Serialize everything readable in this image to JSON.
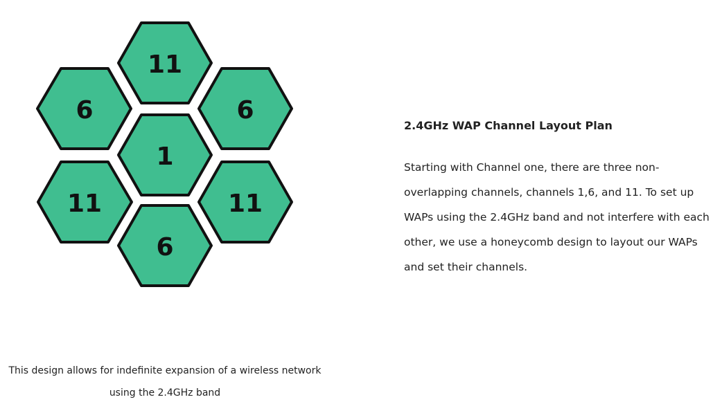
{
  "diagram": {
    "fill_color": "#40be90",
    "stroke_color": "#111111",
    "cells": [
      {
        "position": "top",
        "channel": "11"
      },
      {
        "position": "upper-left",
        "channel": "6"
      },
      {
        "position": "upper-right",
        "channel": "6"
      },
      {
        "position": "center",
        "channel": "1"
      },
      {
        "position": "lower-left",
        "channel": "11"
      },
      {
        "position": "lower-right",
        "channel": "11"
      },
      {
        "position": "bottom",
        "channel": "6"
      }
    ]
  },
  "caption": {
    "line1": "This design allows for indefinite expansion of a wireless network",
    "line2": "using the 2.4GHz band"
  },
  "title": "2.4GHz WAP Channel Layout Plan",
  "description": {
    "lines": [
      "Starting with Channel one, there are three non-",
      "overlapping channels, channels 1,6, and 11. To set up",
      "WAPs using the 2.4GHz band and not interfere with each",
      "other, we use a honeycomb design to layout our WAPs",
      "and set their channels."
    ]
  }
}
